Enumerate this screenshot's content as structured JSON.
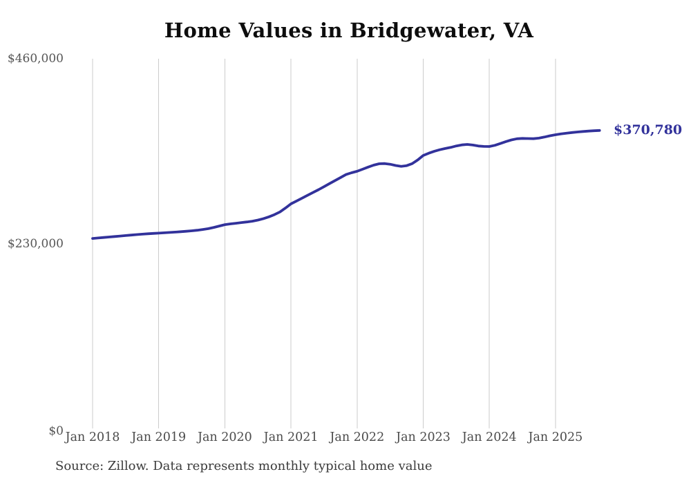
{
  "title": "Home Values in Bridgewater, VA",
  "source_note": "Source: Zillow. Data represents monthly typical home value",
  "colors": {
    "line": "#32329b",
    "grid": "#cbcbcb",
    "axis_label": "#555555",
    "title": "#0d0d0d",
    "end_label": "#32329b"
  },
  "chart_data": {
    "type": "line",
    "title": "Home Values in Bridgewater, VA",
    "ylim": [
      0,
      460000
    ],
    "grid": "vertical-only",
    "y_ticks": [
      {
        "value": 0,
        "label": "$0"
      },
      {
        "value": 230000,
        "label": "$230,000"
      },
      {
        "value": 460000,
        "label": "$460,000"
      }
    ],
    "x_ticks": [
      "Jan 2018",
      "Jan 2019",
      "Jan 2020",
      "Jan 2021",
      "Jan 2022",
      "Jan 2023",
      "Jan 2024",
      "Jan 2025"
    ],
    "end_annotation": {
      "label": "$370,780",
      "value": 370780
    },
    "series": [
      {
        "name": "Monthly typical home value",
        "start_month": "2018-01",
        "end_month": "2025-09",
        "interval": "monthly",
        "values": [
          236400,
          237000,
          237600,
          238200,
          238800,
          239400,
          240000,
          240600,
          241200,
          241700,
          242200,
          242600,
          243000,
          243400,
          243800,
          244300,
          244800,
          245300,
          245900,
          246600,
          247500,
          248600,
          250100,
          251800,
          253600,
          254500,
          255300,
          256100,
          256900,
          257900,
          259200,
          261000,
          263300,
          266000,
          269400,
          274200,
          279400,
          283000,
          286500,
          290000,
          293500,
          297100,
          300800,
          304600,
          308400,
          312200,
          315900,
          318100,
          319900,
          322500,
          325200,
          327600,
          329300,
          329600,
          328700,
          327200,
          326100,
          327000,
          329500,
          334000,
          339600,
          342500,
          344900,
          346800,
          348300,
          349700,
          351500,
          352800,
          353400,
          352600,
          351400,
          350900,
          350800,
          352300,
          354500,
          356900,
          359000,
          360400,
          360900,
          360700,
          360500,
          361200,
          362600,
          364100,
          365400,
          366500,
          367400,
          368200,
          368900,
          369500,
          370000,
          370400,
          370780
        ]
      }
    ]
  }
}
